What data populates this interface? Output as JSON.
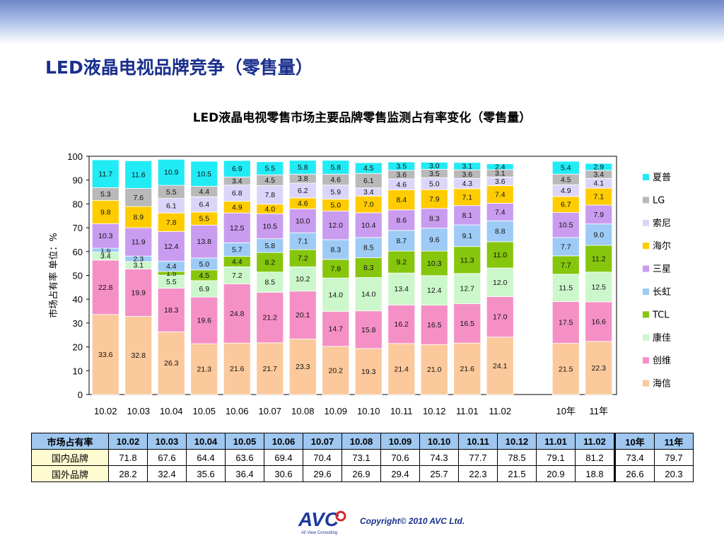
{
  "slide_title": "LED液晶电视品牌竞争（零售量）",
  "chart_title": "LED液晶电视零售市场主要品牌零售监测占有率变化（零售量）",
  "chart_data": {
    "type": "bar",
    "stacked": true,
    "title": "LED液晶电视零售市场主要品牌零售监测占有率变化（零售量）",
    "ylabel": "市场占有率 单位：%",
    "xlabel": "",
    "ylim": [
      0,
      100
    ],
    "yticks": [
      0,
      10,
      20,
      30,
      40,
      50,
      60,
      70,
      80,
      90,
      100
    ],
    "categories": [
      "10.02",
      "10.03",
      "10.04",
      "10.05",
      "10.06",
      "10.07",
      "10.08",
      "10.09",
      "10.10",
      "10.11",
      "10.12",
      "11.01",
      "11.02",
      "10年",
      "11年"
    ],
    "legend_position": "right",
    "series": [
      {
        "name": "海信",
        "color": "#fbc99b",
        "values": [
          33.6,
          32.8,
          26.3,
          21.3,
          21.6,
          21.7,
          23.3,
          20.2,
          19.3,
          21.4,
          21.0,
          21.6,
          24.1,
          21.5,
          22.3
        ]
      },
      {
        "name": "创维",
        "color": "#f590c6",
        "values": [
          22.8,
          19.9,
          18.3,
          19.6,
          24.8,
          21.2,
          20.1,
          14.7,
          15.8,
          16.2,
          16.5,
          16.5,
          17.0,
          17.5,
          16.6
        ]
      },
      {
        "name": "康佳",
        "color": "#ccf7cb",
        "values": [
          3.4,
          3.1,
          5.5,
          6.9,
          7.2,
          8.5,
          10.2,
          14.0,
          14.0,
          13.4,
          12.4,
          12.7,
          12.0,
          11.5,
          12.5
        ]
      },
      {
        "name": "TCL",
        "color": "#86c60d",
        "values": [
          null,
          null,
          1.5,
          4.5,
          4.4,
          8.2,
          7.2,
          7.8,
          8.3,
          9.2,
          10.3,
          11.3,
          11.0,
          7.7,
          11.2
        ]
      },
      {
        "name": "长虹",
        "color": "#9dcbf5",
        "values": [
          1.6,
          2.3,
          4.4,
          5.0,
          5.7,
          5.8,
          7.1,
          8.3,
          8.5,
          8.7,
          9.6,
          9.1,
          8.8,
          7.7,
          9.0
        ]
      },
      {
        "name": "三星",
        "color": "#c99cf0",
        "values": [
          10.3,
          11.9,
          12.4,
          13.8,
          12.5,
          10.5,
          10.0,
          12.0,
          10.4,
          8.6,
          8.3,
          8.1,
          7.4,
          10.5,
          7.9
        ]
      },
      {
        "name": "海尔",
        "color": "#ffcc00",
        "values": [
          9.8,
          8.9,
          7.8,
          5.5,
          4.9,
          4.0,
          4.6,
          5.0,
          7.0,
          8.4,
          7.9,
          7.1,
          7.4,
          6.7,
          7.1
        ]
      },
      {
        "name": "索尼",
        "color": "#dcd5fa",
        "values": [
          null,
          null,
          6.1,
          6.4,
          6.8,
          7.8,
          6.2,
          5.9,
          3.4,
          4.6,
          5.0,
          4.3,
          3.6,
          4.9,
          4.1
        ]
      },
      {
        "name": "LG",
        "color": "#b9b9b9",
        "values": [
          5.3,
          7.6,
          5.5,
          4.4,
          3.4,
          4.5,
          3.8,
          4.6,
          6.1,
          3.6,
          3.5,
          3.6,
          3.1,
          4.5,
          3.4
        ]
      },
      {
        "name": "夏普",
        "color": "#21ebf5",
        "values": [
          11.7,
          11.6,
          10.9,
          10.5,
          6.9,
          5.5,
          5.8,
          5.8,
          4.5,
          3.5,
          3.0,
          3.1,
          2.4,
          5.4,
          2.9
        ]
      }
    ]
  },
  "table": {
    "header": [
      "市场占有率",
      "10.02",
      "10.03",
      "10.04",
      "10.05",
      "10.06",
      "10.07",
      "10.08",
      "10.09",
      "10.10",
      "10.11",
      "10.12",
      "11.01",
      "11.02",
      "10年",
      "11年"
    ],
    "rows": [
      {
        "label": "国内品牌",
        "values": [
          "71.8",
          "67.6",
          "64.4",
          "63.6",
          "69.4",
          "70.4",
          "73.1",
          "70.6",
          "74.3",
          "77.7",
          "78.5",
          "79.1",
          "81.2",
          "73.4",
          "79.7"
        ]
      },
      {
        "label": "国外品牌",
        "values": [
          "28.2",
          "32.4",
          "35.6",
          "36.4",
          "30.6",
          "29.6",
          "26.9",
          "29.4",
          "25.7",
          "22.3",
          "21.5",
          "20.9",
          "18.8",
          "26.6",
          "20.3"
        ]
      }
    ]
  },
  "footer": {
    "logo_text": "AVC",
    "logo_subtext": "All View Consulting",
    "copyright": "Copyright© 2010 AVC Ltd."
  }
}
